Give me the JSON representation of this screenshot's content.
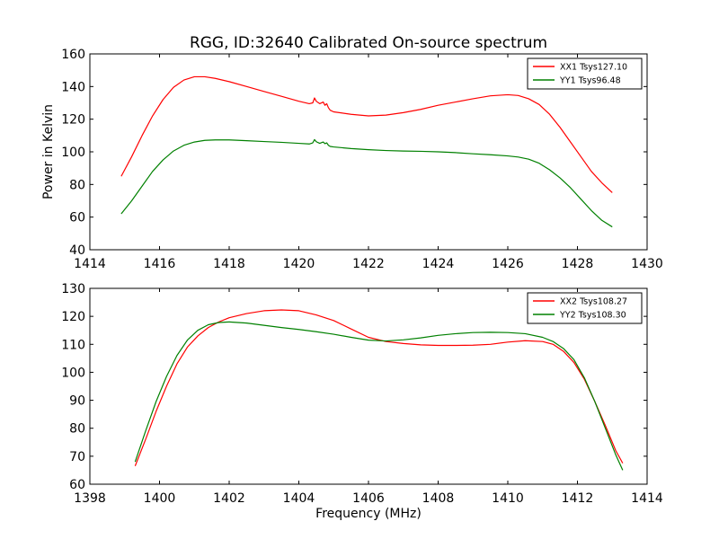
{
  "figure": {
    "title": "RGG, ID:32640 Calibrated On-source spectrum"
  },
  "chart_data": [
    {
      "type": "line",
      "xlabel": "",
      "ylabel": "Power in Kelvin",
      "xlim": [
        1414,
        1430
      ],
      "ylim": [
        40,
        160
      ],
      "xticks": [
        1414,
        1416,
        1418,
        1420,
        1422,
        1424,
        1426,
        1428,
        1430
      ],
      "yticks": [
        40,
        60,
        80,
        100,
        120,
        140,
        160
      ],
      "grid": false,
      "legend_position": "top-right",
      "series": [
        {
          "name": "XX1 Tsys127.10",
          "color": "#ff0000",
          "x": [
            1414.9,
            1415.2,
            1415.5,
            1415.8,
            1416.1,
            1416.4,
            1416.7,
            1417.0,
            1417.3,
            1417.6,
            1418.0,
            1418.5,
            1419.0,
            1419.5,
            1420.0,
            1420.3,
            1420.4,
            1420.45,
            1420.5,
            1420.6,
            1420.7,
            1420.75,
            1420.8,
            1420.85,
            1420.9,
            1421.0,
            1421.5,
            1422.0,
            1422.5,
            1423.0,
            1423.5,
            1424.0,
            1424.5,
            1425.0,
            1425.5,
            1426.0,
            1426.3,
            1426.6,
            1426.9,
            1427.2,
            1427.5,
            1427.8,
            1428.1,
            1428.4,
            1428.7,
            1429.0
          ],
          "y": [
            85,
            97,
            110,
            122,
            132,
            139.5,
            144,
            146,
            146,
            145,
            143,
            140,
            137,
            134,
            131,
            129.5,
            130,
            133,
            131,
            129.5,
            130.5,
            128.5,
            129.5,
            127,
            125.5,
            124.5,
            123,
            122,
            122.5,
            124,
            126,
            128.5,
            130.5,
            132.5,
            134.3,
            135,
            134.5,
            132.5,
            129,
            123,
            115,
            106,
            97,
            88,
            81,
            75
          ]
        },
        {
          "name": "YY1 Tsys96.48",
          "color": "#008000",
          "x": [
            1414.9,
            1415.2,
            1415.5,
            1415.8,
            1416.1,
            1416.4,
            1416.7,
            1417.0,
            1417.3,
            1417.6,
            1418.0,
            1418.5,
            1419.0,
            1419.5,
            1420.0,
            1420.3,
            1420.4,
            1420.45,
            1420.5,
            1420.6,
            1420.7,
            1420.75,
            1420.8,
            1420.85,
            1420.9,
            1421.0,
            1421.5,
            1422.0,
            1422.5,
            1423.0,
            1423.5,
            1424.0,
            1424.5,
            1425.0,
            1425.5,
            1426.0,
            1426.3,
            1426.6,
            1426.9,
            1427.2,
            1427.5,
            1427.8,
            1428.1,
            1428.4,
            1428.7,
            1429.0
          ],
          "y": [
            62,
            70,
            79,
            88,
            95,
            100.5,
            104,
            106,
            107,
            107.3,
            107.3,
            106.8,
            106.3,
            105.8,
            105.2,
            104.8,
            105.5,
            107.5,
            106.2,
            105.2,
            106,
            105,
            105.5,
            104,
            103.3,
            103,
            102,
            101.3,
            100.8,
            100.5,
            100.3,
            100,
            99.5,
            98.8,
            98.2,
            97.5,
            96.8,
            95.5,
            93,
            89,
            84,
            78,
            71,
            64,
            58,
            54
          ]
        }
      ]
    },
    {
      "type": "line",
      "xlabel": "Frequency (MHz)",
      "ylabel": "",
      "xlim": [
        1398,
        1414
      ],
      "ylim": [
        60,
        130
      ],
      "xticks": [
        1398,
        1400,
        1402,
        1404,
        1406,
        1408,
        1410,
        1412,
        1414
      ],
      "yticks": [
        60,
        70,
        80,
        90,
        100,
        110,
        120,
        130
      ],
      "grid": false,
      "legend_position": "top-right",
      "series": [
        {
          "name": "XX2 Tsys108.27",
          "color": "#ff0000",
          "x": [
            1399.3,
            1399.6,
            1399.9,
            1400.2,
            1400.5,
            1400.8,
            1401.1,
            1401.4,
            1401.7,
            1402.0,
            1402.5,
            1403.0,
            1403.5,
            1404.0,
            1404.5,
            1405.0,
            1405.5,
            1406.0,
            1406.5,
            1407.0,
            1407.5,
            1408.0,
            1408.5,
            1409.0,
            1409.5,
            1410.0,
            1410.5,
            1411.0,
            1411.3,
            1411.6,
            1411.9,
            1412.2,
            1412.5,
            1412.8,
            1413.1,
            1413.3
          ],
          "y": [
            66.5,
            76,
            86,
            95,
            103,
            109,
            113,
            116,
            118,
            119.5,
            121,
            122,
            122.3,
            122,
            120.5,
            118.5,
            115.5,
            112.5,
            111,
            110.3,
            109.8,
            109.6,
            109.6,
            109.7,
            110,
            110.8,
            111.3,
            111,
            110,
            107.5,
            103.5,
            97.5,
            89.5,
            81,
            72,
            67.5
          ]
        },
        {
          "name": "YY2 Tsys108.30",
          "color": "#008000",
          "x": [
            1399.3,
            1399.6,
            1399.9,
            1400.2,
            1400.5,
            1400.8,
            1401.1,
            1401.4,
            1401.7,
            1402.0,
            1402.5,
            1403.0,
            1403.5,
            1404.0,
            1404.5,
            1405.0,
            1405.5,
            1406.0,
            1406.5,
            1407.0,
            1407.5,
            1408.0,
            1408.5,
            1409.0,
            1409.5,
            1410.0,
            1410.5,
            1411.0,
            1411.3,
            1411.6,
            1411.9,
            1412.2,
            1412.5,
            1412.8,
            1413.1,
            1413.3
          ],
          "y": [
            68,
            79,
            89.5,
            98.5,
            106,
            111.5,
            115,
            117,
            117.8,
            118,
            117.6,
            116.8,
            116,
            115.3,
            114.5,
            113.6,
            112.5,
            111.5,
            111.2,
            111.6,
            112.3,
            113.2,
            113.8,
            114.2,
            114.3,
            114.2,
            113.8,
            112.5,
            111,
            108.5,
            104.5,
            98,
            89.5,
            80,
            70.5,
            65
          ]
        }
      ]
    }
  ]
}
